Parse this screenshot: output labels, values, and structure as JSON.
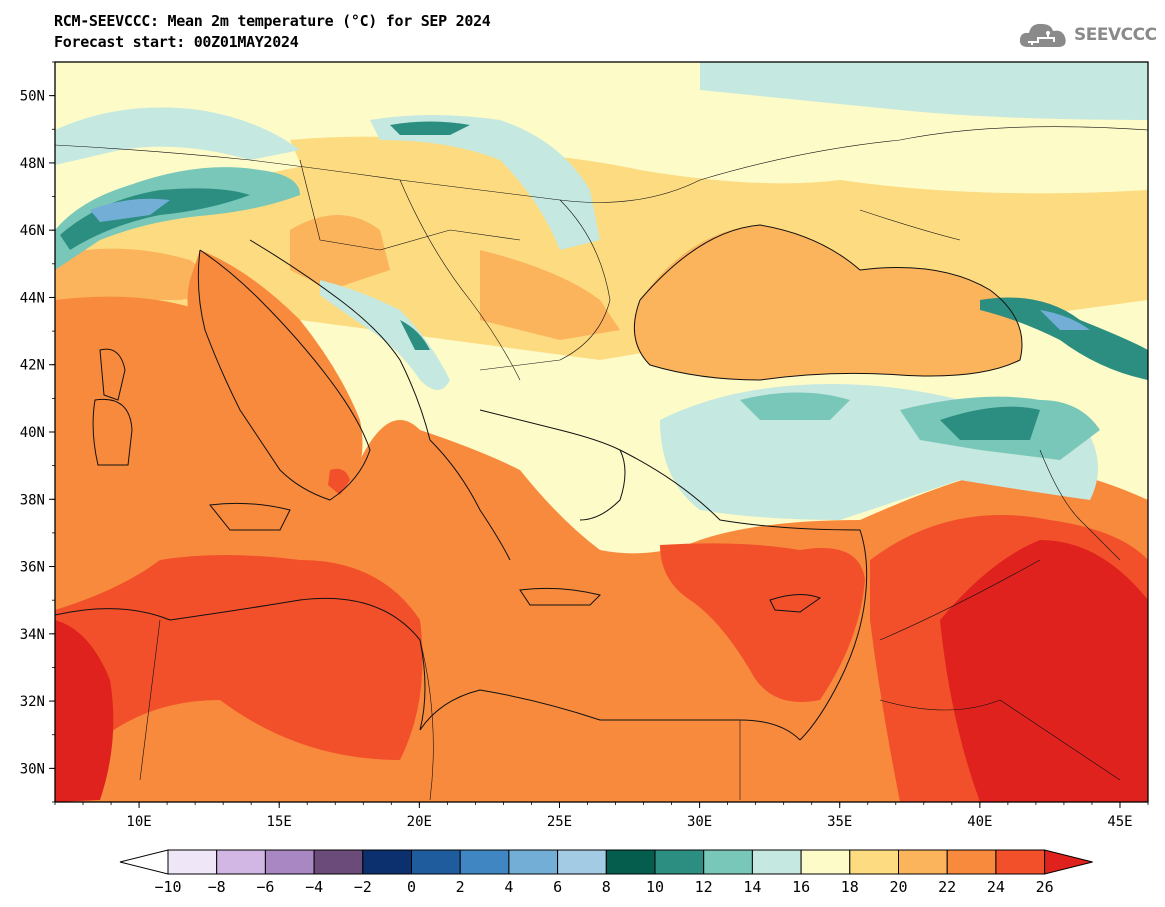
{
  "header": {
    "title": "RCM-SEEVCCC: Mean 2m temperature (°C) for SEP 2024",
    "subtitle": "Forecast start: 00Z01MAY2024",
    "logo_text": "SEEVCCC",
    "logo_icon": "cloud-icon"
  },
  "map": {
    "lon_range": [
      7,
      46
    ],
    "lat_range": [
      29,
      51
    ],
    "lat_ticks": [
      {
        "value": 50,
        "label": "50N"
      },
      {
        "value": 48,
        "label": "48N"
      },
      {
        "value": 46,
        "label": "46N"
      },
      {
        "value": 44,
        "label": "44N"
      },
      {
        "value": 42,
        "label": "42N"
      },
      {
        "value": 40,
        "label": "40N"
      },
      {
        "value": 38,
        "label": "38N"
      },
      {
        "value": 36,
        "label": "36N"
      },
      {
        "value": 34,
        "label": "34N"
      },
      {
        "value": 32,
        "label": "32N"
      },
      {
        "value": 30,
        "label": "30N"
      }
    ],
    "lon_ticks": [
      {
        "value": 10,
        "label": "10E"
      },
      {
        "value": 15,
        "label": "15E"
      },
      {
        "value": 20,
        "label": "20E"
      },
      {
        "value": 25,
        "label": "25E"
      },
      {
        "value": 30,
        "label": "30E"
      },
      {
        "value": 35,
        "label": "35E"
      },
      {
        "value": 40,
        "label": "40E"
      },
      {
        "value": 45,
        "label": "45E"
      }
    ]
  },
  "colorbar": {
    "labels": [
      "-10",
      "-8",
      "-6",
      "-4",
      "-2",
      "0",
      "2",
      "4",
      "6",
      "8",
      "10",
      "12",
      "14",
      "16",
      "18",
      "20",
      "22",
      "24",
      "26"
    ],
    "under_color": "#ffffff",
    "over_color": "#e0221f",
    "colors": [
      "#efe6f7",
      "#d2b6e3",
      "#a987c2",
      "#6b4b79",
      "#0c2f6e",
      "#1f5c9e",
      "#3f86c2",
      "#73aed6",
      "#a3cbe3",
      "#045d4d",
      "#2c8e80",
      "#78c7b9",
      "#c5e8e0",
      "#fdfbc8",
      "#fddb80",
      "#fbb35c",
      "#f88a3d",
      "#f2502a"
    ]
  }
}
